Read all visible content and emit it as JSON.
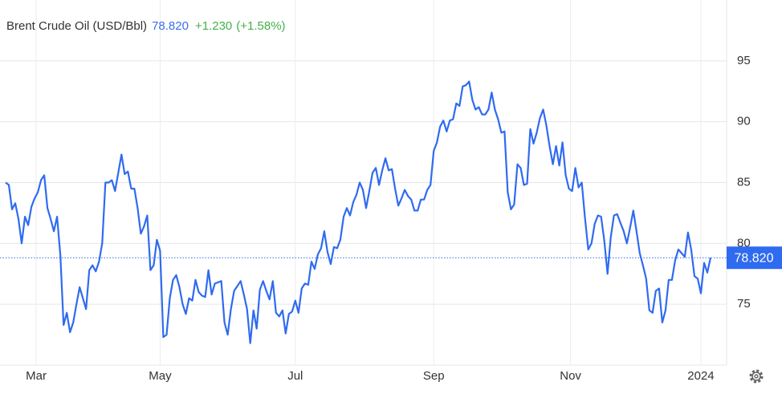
{
  "header": {
    "title": "Brent Crude Oil (USD/Bbl)",
    "price": "78.820",
    "change": "+1.230",
    "change_pct": "(+1.58%)"
  },
  "chart_data": {
    "type": "line",
    "color": "#2f6bf0",
    "grid": true,
    "values": [
      85,
      84.8,
      82.8,
      83.3,
      82,
      80,
      82.2,
      81.5,
      83,
      83.7,
      84.2,
      85.2,
      85.6,
      82.9,
      82,
      81,
      82.2,
      79,
      73.3,
      74.3,
      72.7,
      73.5,
      75,
      76.4,
      75.5,
      74.6,
      77.8,
      78.2,
      77.7,
      78.5,
      80,
      85,
      85,
      85.2,
      84.3,
      85.8,
      87.3,
      85.7,
      85.9,
      84.5,
      84.5,
      82.9,
      80.8,
      81.4,
      82.3,
      77.8,
      78.2,
      80.3,
      79.4,
      72.3,
      72.5,
      75.5,
      77,
      77.4,
      76.4,
      75,
      74.2,
      75.5,
      75.3,
      77,
      76,
      75.7,
      75.6,
      77.8,
      75.8,
      76.7,
      76.8,
      76.9,
      73.5,
      72.5,
      74.6,
      76.1,
      76.5,
      76.9,
      75.8,
      74.6,
      71.8,
      74.5,
      73,
      76.2,
      76.9,
      76.1,
      75.4,
      76.9,
      74.3,
      74,
      74.5,
      72.6,
      74.2,
      74.4,
      75.3,
      74.3,
      76.3,
      76.7,
      76.6,
      78.5,
      77.9,
      79.1,
      79.6,
      81,
      79.3,
      78.3,
      79.7,
      79.6,
      80.3,
      82.2,
      82.9,
      82.3,
      83.4,
      84,
      85,
      84.4,
      82.9,
      84.3,
      85.8,
      86.2,
      84.8,
      86,
      87,
      86,
      86.1,
      84.5,
      83.1,
      83.7,
      84.4,
      83.9,
      83.6,
      82.7,
      82.7,
      83.6,
      83.6,
      84.4,
      84.8,
      87.6,
      88.3,
      89.6,
      90.1,
      89.2,
      90.1,
      90.2,
      91.5,
      91.3,
      92.9,
      93,
      93.3,
      91.8,
      91,
      91.2,
      90.6,
      90.6,
      91,
      92.4,
      91,
      90.2,
      89.1,
      89.2,
      84.2,
      82.8,
      83.2,
      86.5,
      86.2,
      84.8,
      84.9,
      89.4,
      88.2,
      89.1,
      90.3,
      91,
      89.7,
      88,
      86.5,
      88,
      86.4,
      88.3,
      85.6,
      84.5,
      84.3,
      86.2,
      84.6,
      85,
      82.1,
      79.5,
      80,
      81.6,
      82.3,
      82.2,
      80.2,
      77.5,
      80.5,
      82.3,
      82.4,
      81.7,
      81,
      80,
      81.3,
      82.7,
      81,
      79.2,
      78.2,
      77.1,
      74.5,
      74.3,
      76.1,
      76.3,
      73.5,
      74.5,
      77,
      77,
      78.6,
      79.5,
      79.2,
      78.9,
      80.9,
      79.5,
      77.3,
      77.1,
      75.9,
      78.4,
      77.6,
      78.82
    ],
    "xlim": [
      0,
      219
    ],
    "xticks": [
      {
        "value": 9.5,
        "label": "Mar"
      },
      {
        "value": 48,
        "label": "May"
      },
      {
        "value": 90,
        "label": "Jul"
      },
      {
        "value": 133,
        "label": "Sep"
      },
      {
        "value": 175.5,
        "label": "Nov"
      },
      {
        "value": 216,
        "label": "2024"
      }
    ],
    "ylim": [
      70,
      100
    ],
    "yticks": [
      75,
      80,
      85,
      90,
      95
    ]
  }
}
